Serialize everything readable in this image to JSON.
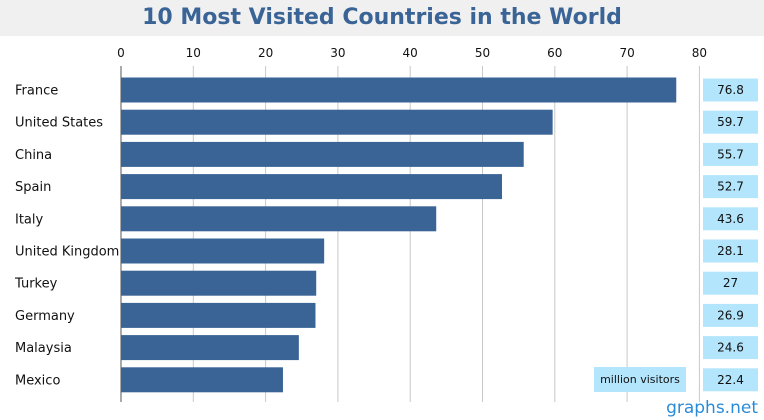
{
  "chart_data": {
    "type": "bar",
    "orientation": "horizontal",
    "title": "10 Most Visited Countries in the World",
    "categories": [
      "France",
      "United States",
      "China",
      "Spain",
      "Italy",
      "United Kingdom",
      "Turkey",
      "Germany",
      "Malaysia",
      "Mexico"
    ],
    "values": [
      76.8,
      59.7,
      55.7,
      52.7,
      43.6,
      28.1,
      27,
      26.9,
      24.6,
      22.4
    ],
    "value_labels": [
      "76.8",
      "59.7",
      "55.7",
      "52.7",
      "43.6",
      "28.1",
      "27",
      "26.9",
      "24.6",
      "22.4"
    ],
    "xticks": [
      "0",
      "10",
      "20",
      "30",
      "40",
      "50",
      "60",
      "70",
      "80"
    ],
    "xlim": [
      0,
      80
    ],
    "x_axis_position": "top",
    "unit_label": "million visitors",
    "grid": true,
    "legend": "none",
    "colors": {
      "bar": "#3a6496",
      "value_box": "#b3e5fc",
      "grid": "#c8c8c8",
      "title": "#3a6496"
    }
  },
  "watermark": "graphs.net"
}
